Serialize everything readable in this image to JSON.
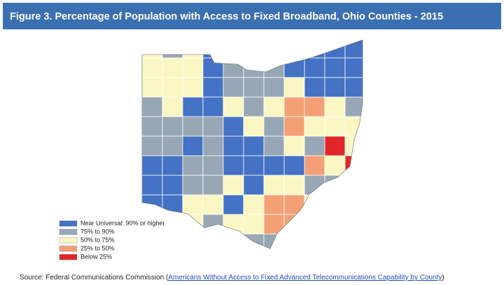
{
  "header": {
    "title": "Figure 3. Percentage of Population with Access to Fixed Broadband, Ohio Counties - 2015"
  },
  "legend": {
    "items": [
      {
        "label": "Near Universal: 90% or higher",
        "color": "#4472c4"
      },
      {
        "label": "75% to 90%",
        "color": "#98a7b5"
      },
      {
        "label": "50% to 75%",
        "color": "#fbf7c4"
      },
      {
        "label": "25% to 50%",
        "color": "#f4a074"
      },
      {
        "label": "Below 25%",
        "color": "#e02626"
      }
    ]
  },
  "source": {
    "prefix": "Source: Federal Communications Commission (",
    "link": "Americans Without Access to Fixed Advanced Telecommunications Capability by County",
    "suffix": ")"
  }
}
